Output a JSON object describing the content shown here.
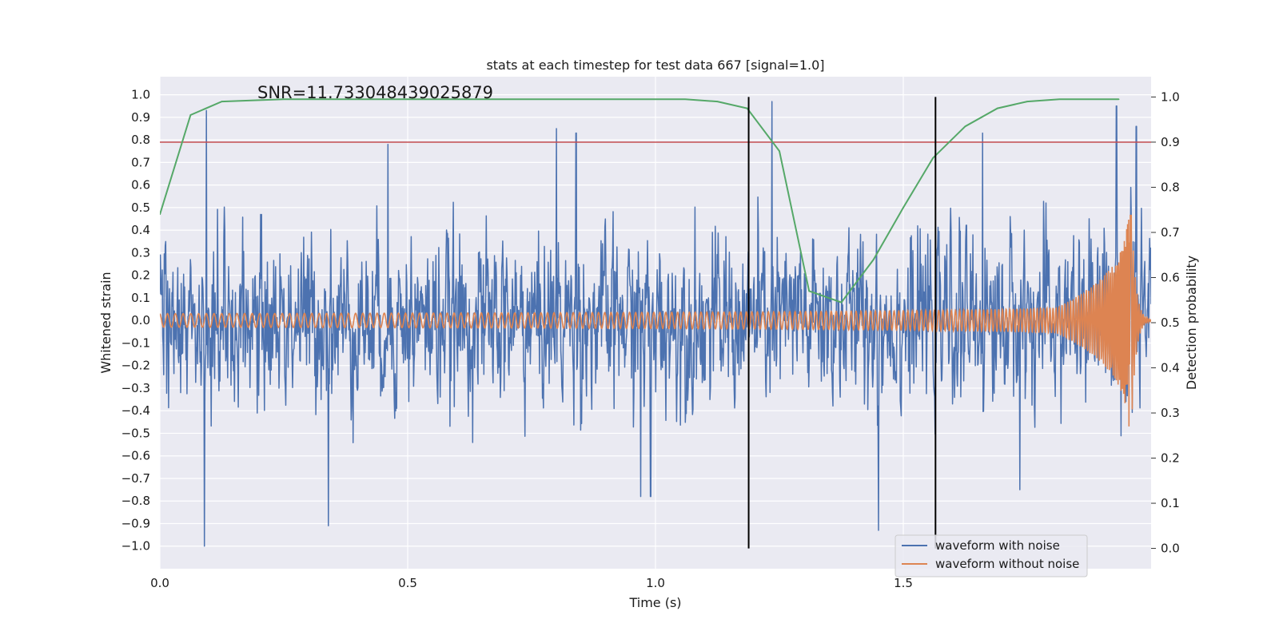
{
  "chart_data": {
    "type": "line",
    "title": "stats at each timestep for test data 667 [signal=1.0]",
    "annotation": "SNR=11.733048439025879",
    "xlabel": "Time (s)",
    "ylabel": "Whitened strain",
    "y2label": "Detection probability",
    "xlim": [
      0.0,
      2.0
    ],
    "ylim": [
      -1.1,
      1.08
    ],
    "y2lim": [
      -0.045,
      1.045
    ],
    "xticks": [
      0.0,
      0.5,
      1.0,
      1.5
    ],
    "xtick_labels": [
      "0.0",
      "0.5",
      "1.0",
      "1.5"
    ],
    "yticks": [
      1.0,
      0.9,
      0.8,
      0.7,
      0.6,
      0.5,
      0.4,
      0.3,
      0.2,
      0.1,
      0.0,
      -0.1,
      -0.2,
      -0.3,
      -0.4,
      -0.5,
      -0.6,
      -0.7,
      -0.8,
      -0.9,
      -1.0
    ],
    "ytick_labels": [
      "1.0",
      "0.9",
      "0.8",
      "0.7",
      "0.6",
      "0.5",
      "0.4",
      "0.3",
      "0.2",
      "0.1",
      "0.0",
      "−0.1",
      "−0.2",
      "−0.3",
      "−0.4",
      "−0.5",
      "−0.6",
      "−0.7",
      "−0.8",
      "−0.9",
      "−1.0"
    ],
    "y2ticks": [
      1.0,
      0.9,
      0.8,
      0.7,
      0.6,
      0.5,
      0.4,
      0.3,
      0.2,
      0.1,
      0.0
    ],
    "y2tick_labels": [
      "1.0",
      "0.9",
      "0.8",
      "0.7",
      "0.6",
      "0.5",
      "0.4",
      "0.3",
      "0.2",
      "0.1",
      "0.0"
    ],
    "threshold": {
      "y2": 0.9,
      "color": "#c44e52"
    },
    "event_lines": {
      "x": [
        1.188,
        1.565
      ],
      "color": "#000000"
    },
    "noisy_waveform": {
      "name": "waveform with noise",
      "color": "#4c72b0",
      "description": "whitened strain with noise, spans roughly -1.0 to 0.97",
      "n_samples": 2048,
      "amplitude_std": 0.26,
      "spikes": [
        [
          0.09,
          -1.0
        ],
        [
          0.094,
          0.93
        ],
        [
          0.34,
          -0.91
        ],
        [
          0.46,
          0.78
        ],
        [
          0.8,
          0.85
        ],
        [
          0.84,
          0.83
        ],
        [
          0.97,
          -0.78
        ],
        [
          0.99,
          -0.78
        ],
        [
          1.235,
          0.97
        ],
        [
          1.45,
          -0.93
        ],
        [
          1.66,
          0.83
        ],
        [
          1.735,
          -0.75
        ],
        [
          1.93,
          0.95
        ],
        [
          1.97,
          0.86
        ]
      ]
    },
    "clean_waveform": {
      "name": "waveform without noise",
      "color": "#dd8452",
      "description": "chirp signal: amplitude grows from ~0.03 to ~0.52 with rising frequency, merger near t=1.96 s",
      "t_start": 0.0,
      "t_merger": 1.96,
      "t_end": 2.0
    },
    "probability": {
      "name": "detection probability",
      "color": "#55a868",
      "x": [
        0.0,
        0.062,
        0.125,
        0.25,
        0.375,
        0.5,
        0.625,
        0.75,
        0.875,
        1.0,
        1.06,
        1.125,
        1.185,
        1.25,
        1.31,
        1.375,
        1.44,
        1.5,
        1.56,
        1.625,
        1.69,
        1.75,
        1.815,
        1.875,
        1.935
      ],
      "y": [
        0.74,
        0.96,
        0.99,
        0.995,
        0.995,
        0.995,
        0.995,
        0.995,
        0.995,
        0.995,
        0.995,
        0.99,
        0.975,
        0.88,
        0.57,
        0.545,
        0.64,
        0.755,
        0.865,
        0.935,
        0.975,
        0.99,
        0.995,
        0.995,
        0.995
      ]
    },
    "legend": {
      "location": "lower-right",
      "entries": [
        {
          "label": "waveform with noise",
          "color": "#4c72b0"
        },
        {
          "label": "waveform without noise",
          "color": "#dd8452"
        }
      ]
    }
  }
}
